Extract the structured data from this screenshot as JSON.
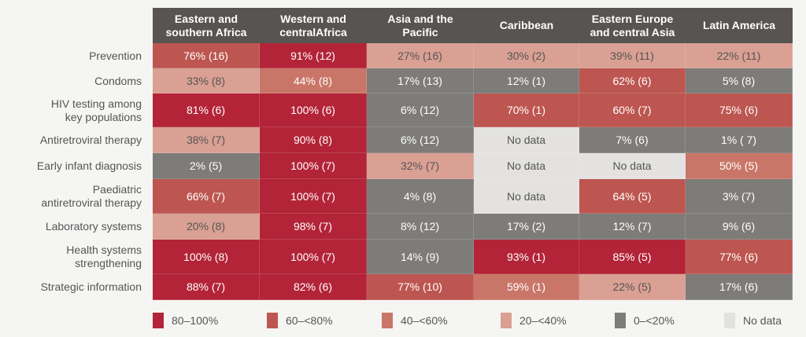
{
  "chart_data": {
    "type": "heatmap",
    "columns": [
      "Eastern and\nsouthern Africa",
      "Western and\ncentralAfrica",
      "Asia and the\nPacific",
      "Caribbean",
      "Eastern Europe\nand central Asia",
      "Latin America"
    ],
    "rows": [
      "Prevention",
      "Condoms",
      "HIV testing among\nkey populations",
      "Antiretroviral therapy",
      "Early infant diagnosis",
      "Paediatric\nantiretroviral therapy",
      "Laboratory systems",
      "Health systems\nstrengthening",
      "Strategic information"
    ],
    "values": [
      [
        76,
        91,
        27,
        30,
        39,
        22
      ],
      [
        33,
        44,
        17,
        12,
        62,
        5
      ],
      [
        81,
        100,
        6,
        70,
        60,
        75
      ],
      [
        38,
        90,
        6,
        null,
        7,
        1
      ],
      [
        2,
        100,
        32,
        null,
        null,
        50
      ],
      [
        66,
        100,
        4,
        null,
        64,
        3
      ],
      [
        20,
        98,
        8,
        17,
        12,
        9
      ],
      [
        100,
        100,
        14,
        93,
        85,
        77
      ],
      [
        88,
        82,
        77,
        59,
        22,
        17
      ]
    ],
    "labels": [
      [
        "76% (16)",
        "91% (12)",
        "27% (16)",
        "30% (2)",
        "39% (11)",
        "22% (11)"
      ],
      [
        "33% (8)",
        "44% (8)",
        "17% (13)",
        "12% (1)",
        "62% (6)",
        "5% (8)"
      ],
      [
        "81% (6)",
        "100% (6)",
        "6% (12)",
        "70% (1)",
        "60% (7)",
        "75% (6)"
      ],
      [
        "38% (7)",
        "90% (8)",
        "6% (12)",
        "No data",
        "7% (6)",
        "1% ( 7)"
      ],
      [
        "2% (5)",
        "100% (7)",
        "32% (7)",
        "No data",
        "No data",
        "50% (5)"
      ],
      [
        "66% (7)",
        "100% (7)",
        "4% (8)",
        "No data",
        "64% (5)",
        "3% (7)"
      ],
      [
        "20% (8)",
        "98% (7)",
        "8% (12)",
        "17% (2)",
        "12% (7)",
        "9% (6)"
      ],
      [
        "100% (8)",
        "100% (7)",
        "14% (9)",
        "93% (1)",
        "85% (5)",
        "77% (6)"
      ],
      [
        "88% (7)",
        "82% (6)",
        "77% (10)",
        "59% (1)",
        "22% (5)",
        "17% (6)"
      ]
    ],
    "legend": [
      {
        "label": "80–100%",
        "min": 80,
        "color": "#b32438"
      },
      {
        "label": "60–<80%",
        "min": 60,
        "color": "#bd5650"
      },
      {
        "label": "40–<60%",
        "min": 40,
        "color": "#c97668"
      },
      {
        "label": "20–<40%",
        "min": 20,
        "color": "#d9a093"
      },
      {
        "label": "0–<20%",
        "min": 0,
        "color": "#7e7c79"
      },
      {
        "label": "No data",
        "min": null,
        "color": "#e3e2e0"
      }
    ]
  }
}
